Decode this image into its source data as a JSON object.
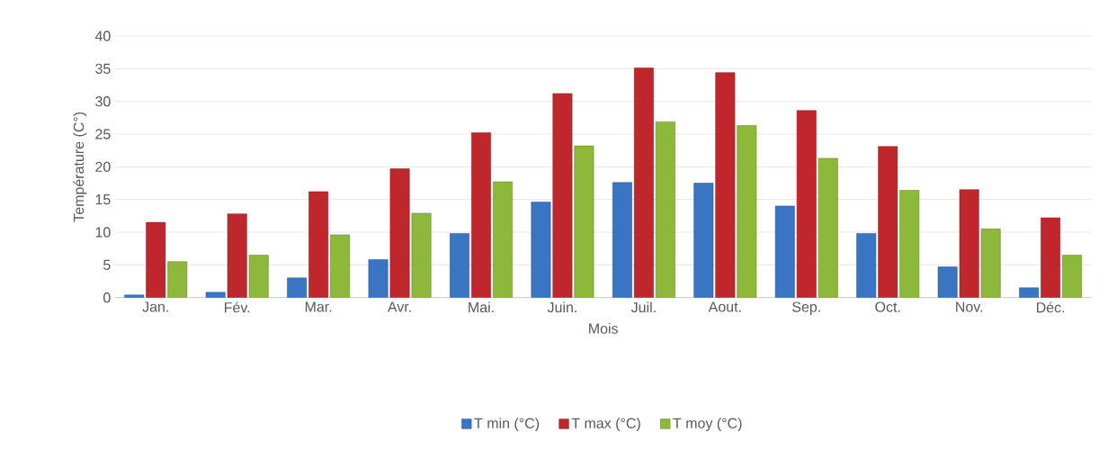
{
  "chart_data": {
    "type": "bar",
    "xlabel": "Mois",
    "ylabel": "Température (C°)",
    "categories": [
      "Jan.",
      "Fév.",
      "Mar.",
      "Avr.",
      "Mai.",
      "Juin.",
      "Juil.",
      "Aout.",
      "Sep.",
      "Oct.",
      "Nov.",
      "Déc."
    ],
    "series": [
      {
        "name": "T min (°C)",
        "color": "#3a75c4",
        "values": [
          0.4,
          0.8,
          3.0,
          5.8,
          9.8,
          14.6,
          17.6,
          17.5,
          14.0,
          9.8,
          4.7,
          1.5
        ]
      },
      {
        "name": "T max (°C)",
        "color": "#c0272d",
        "values": [
          11.5,
          12.8,
          16.2,
          19.7,
          25.2,
          31.2,
          35.1,
          34.4,
          28.6,
          23.1,
          16.5,
          12.2
        ]
      },
      {
        "name": "T moy (°C)",
        "color": "#8db83a",
        "values": [
          5.5,
          6.5,
          9.6,
          12.9,
          17.7,
          23.2,
          26.9,
          26.3,
          21.3,
          16.4,
          10.5,
          6.5
        ]
      }
    ],
    "ylim": [
      0,
      40
    ],
    "yticks": [
      0,
      5,
      10,
      15,
      20,
      25,
      30,
      35,
      40
    ],
    "grid": "y",
    "legend": "bottom"
  }
}
